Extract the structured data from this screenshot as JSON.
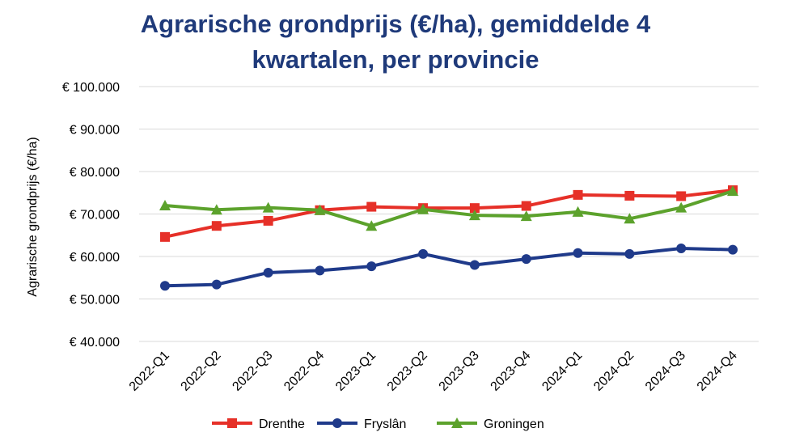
{
  "chart_data": {
    "type": "line",
    "title_lines": [
      "Agrarische grondprijs (€/ha), gemiddelde 4",
      "kwartalen, per provincie"
    ],
    "xlabel": "",
    "ylabel": "Agrarische grondprijs (€/ha)",
    "ylim": [
      40000,
      100000
    ],
    "y_ticks": [
      40000,
      50000,
      60000,
      70000,
      80000,
      90000,
      100000
    ],
    "y_tick_labels": [
      "€ 40.000",
      "€ 50.000",
      "€ 60.000",
      "€ 70.000",
      "€ 80.000",
      "€ 90.000",
      "€ 100.000"
    ],
    "grid": true,
    "legend_position": "bottom",
    "categories": [
      "2022-Q1",
      "2022-Q2",
      "2022-Q3",
      "2022-Q4",
      "2023-Q1",
      "2023-Q2",
      "2023-Q3",
      "2023-Q4",
      "2024-Q1",
      "2024-Q2",
      "2024-Q3",
      "2024-Q4"
    ],
    "series": [
      {
        "name": "Drenthe",
        "color": "#e63028",
        "marker": "square",
        "values": [
          64600,
          67200,
          68400,
          70900,
          71700,
          71400,
          71400,
          71900,
          74500,
          74300,
          74200,
          75600
        ]
      },
      {
        "name": "Fryslân",
        "color": "#1f3a8a",
        "marker": "circle",
        "values": [
          53100,
          53400,
          56200,
          56700,
          57700,
          60600,
          58000,
          59400,
          60800,
          60600,
          61900,
          61600
        ]
      },
      {
        "name": "Groningen",
        "color": "#5ca22c",
        "marker": "triangle",
        "values": [
          72000,
          71000,
          71500,
          70900,
          67200,
          71100,
          69700,
          69500,
          70500,
          68900,
          71500,
          75400
        ]
      }
    ]
  }
}
